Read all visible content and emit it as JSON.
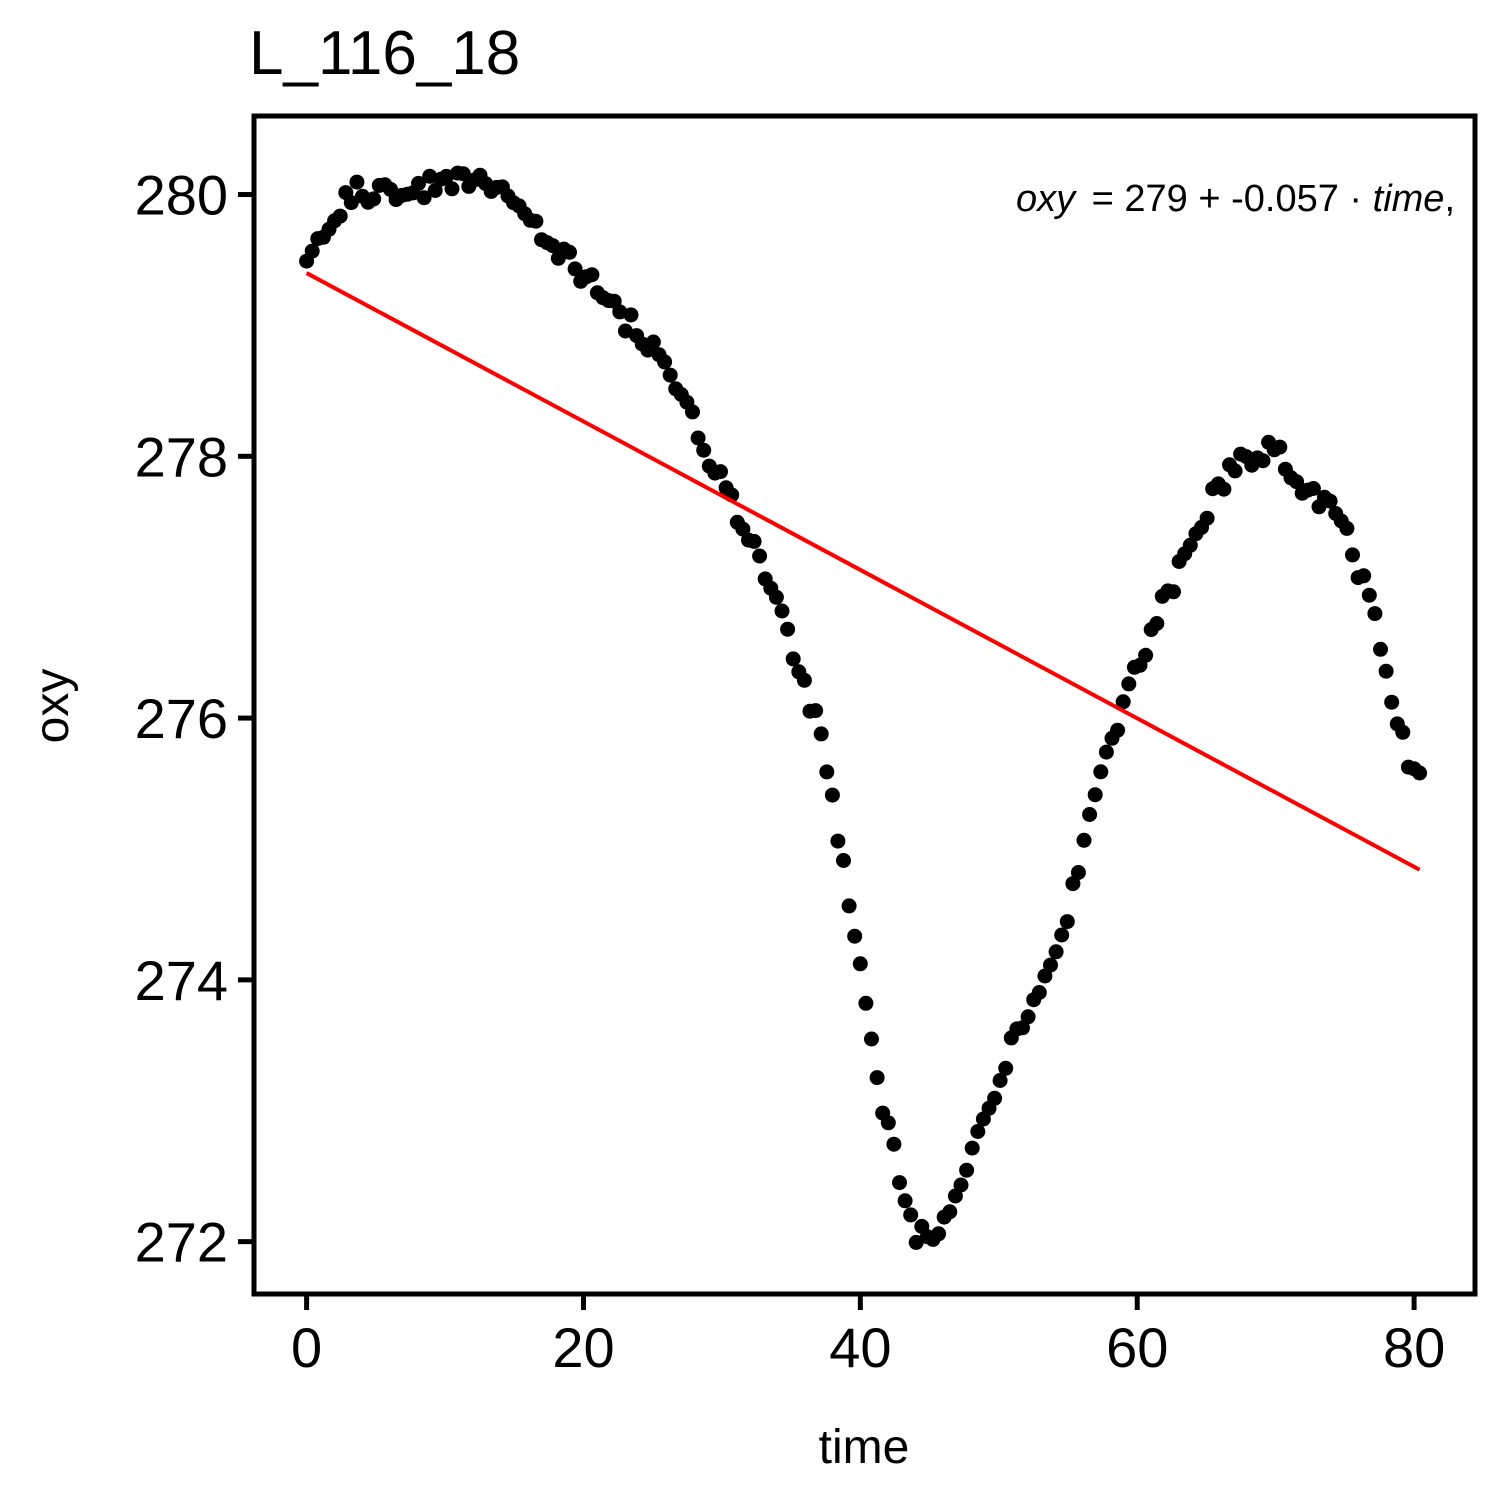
{
  "chart_data": {
    "type": "scatter",
    "title": "L_116_18",
    "xlabel": "time",
    "ylabel": "oxy",
    "xlim": [
      -3.8,
      84.4
    ],
    "ylim": [
      271.6,
      280.6
    ],
    "x_ticks": [
      0,
      20,
      40,
      60,
      80
    ],
    "y_ticks": [
      272,
      274,
      276,
      278,
      280
    ],
    "x_tick_labels": [
      "0",
      "20",
      "40",
      "60",
      "80"
    ],
    "y_tick_labels": [
      "272",
      "274",
      "276",
      "278",
      "280"
    ],
    "grid": false,
    "colors": {
      "points": "#000000",
      "fit_line": "#ff0000"
    },
    "equation": {
      "lhs": "oxy",
      "intercept": "279",
      "slope": "-0.057",
      "var": "time",
      "trail": ","
    },
    "fit_line": {
      "intercept": 279.4,
      "slope": -0.0567,
      "x_range": [
        0,
        80.4
      ]
    },
    "anchors": {
      "x": [
        0.0,
        0.4,
        1.0,
        2.0,
        3.0,
        4.0,
        5.0,
        6.0,
        8.0,
        10.0,
        12.0,
        13.8,
        15.0,
        16.0,
        17.0,
        18.0,
        19.0,
        20.0,
        21.0,
        22.0,
        23.0,
        24.0,
        25.0,
        26.0,
        27.0,
        28.0,
        29.0,
        30.0,
        31.0,
        32.0,
        33.0,
        34.0,
        35.0,
        36.0,
        37.0,
        38.0,
        39.0,
        40.0,
        41.0,
        42.0,
        43.0,
        44.0,
        45.0,
        46.0,
        47.0,
        48.0,
        49.0,
        50.0,
        51.0,
        52.0,
        53.0,
        54.0,
        55.0,
        56.0,
        57.0,
        58.0,
        59.0,
        60.0,
        61.0,
        62.0,
        63.0,
        64.0,
        65.0,
        66.0,
        67.0,
        68.0,
        69.0,
        70.0,
        71.0,
        72.0,
        73.0,
        74.0,
        75.0,
        76.0,
        77.0,
        78.0,
        79.0,
        80.0,
        80.4
      ],
      "y": [
        279.48,
        279.6,
        279.72,
        279.85,
        279.95,
        280.05,
        280.0,
        280.05,
        280.05,
        280.1,
        280.1,
        280.08,
        279.95,
        279.85,
        279.72,
        279.6,
        279.5,
        279.38,
        279.28,
        279.17,
        279.05,
        278.95,
        278.8,
        278.62,
        278.45,
        278.25,
        278.02,
        277.8,
        277.6,
        277.4,
        277.15,
        276.9,
        276.6,
        276.2,
        275.9,
        275.35,
        274.75,
        274.1,
        273.4,
        272.85,
        272.4,
        272.05,
        272.05,
        272.2,
        272.45,
        272.7,
        272.95,
        273.25,
        273.5,
        273.65,
        273.9,
        274.15,
        274.55,
        275.0,
        275.4,
        275.8,
        276.1,
        276.35,
        276.65,
        276.9,
        277.1,
        277.35,
        277.55,
        277.8,
        277.95,
        278.0,
        278.05,
        278.05,
        277.9,
        277.75,
        277.7,
        277.6,
        277.42,
        277.15,
        276.8,
        276.35,
        275.9,
        275.55,
        275.5
      ]
    },
    "sample": {
      "count": 200,
      "x_max": 80.4,
      "seed": 11617,
      "jitter": 0.09
    }
  }
}
